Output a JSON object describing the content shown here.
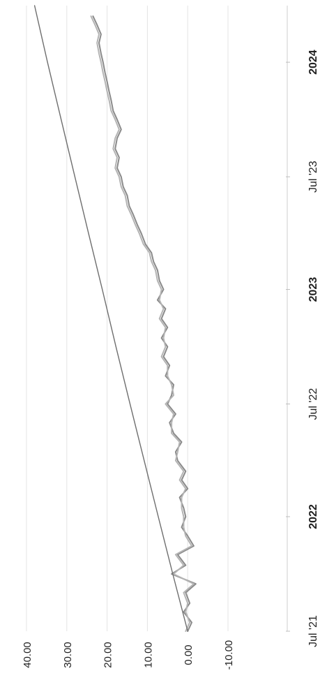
{
  "chart_data": {
    "type": "line",
    "title": "",
    "xlabel": "",
    "ylabel": "",
    "x_ticks": [
      {
        "label": "Jul '21",
        "date": "2021-07-01",
        "bold": false
      },
      {
        "label": "2022",
        "date": "2022-01-01",
        "bold": true
      },
      {
        "label": "Jul '22",
        "date": "2022-07-01",
        "bold": false
      },
      {
        "label": "2023",
        "date": "2023-01-01",
        "bold": true
      },
      {
        "label": "Jul '23",
        "date": "2023-07-01",
        "bold": false
      },
      {
        "label": "2024",
        "date": "2024-01-01",
        "bold": true
      }
    ],
    "y_ticks": [
      "-10.00",
      "0.00",
      "10.00",
      "20.00",
      "30.00",
      "40.00"
    ],
    "xlim": [
      "2021-07-01",
      "2024-04-01"
    ],
    "ylim": [
      -10,
      40
    ],
    "grid": true,
    "legend": "none",
    "orientation": "rotated-90-ccw",
    "series": [
      {
        "color": "#8a8a8a",
        "x": [
          "2021-07-01",
          "2021-07-15",
          "2021-08-01",
          "2021-08-15",
          "2021-09-01",
          "2021-09-15",
          "2021-10-01",
          "2021-10-15",
          "2021-11-01",
          "2021-11-15",
          "2021-12-01",
          "2021-12-15",
          "2022-01-01",
          "2022-01-15",
          "2022-02-01",
          "2022-02-15",
          "2022-03-01",
          "2022-03-15",
          "2022-04-01",
          "2022-04-15",
          "2022-05-01",
          "2022-05-15",
          "2022-06-01",
          "2022-06-15",
          "2022-07-01",
          "2022-07-15",
          "2022-08-01",
          "2022-08-15",
          "2022-09-01",
          "2022-09-15",
          "2022-10-01",
          "2022-10-15",
          "2022-11-01",
          "2022-11-15",
          "2022-12-01",
          "2022-12-15",
          "2023-01-01",
          "2023-01-15",
          "2023-02-01",
          "2023-02-15",
          "2023-03-01",
          "2023-03-15",
          "2023-04-01",
          "2023-04-15",
          "2023-05-01",
          "2023-05-15",
          "2023-06-01",
          "2023-06-15",
          "2023-07-01",
          "2023-07-15",
          "2023-08-01",
          "2023-08-15",
          "2023-09-01",
          "2023-09-15",
          "2023-10-01",
          "2023-10-15",
          "2023-11-01",
          "2023-11-15",
          "2023-12-01",
          "2023-12-15",
          "2024-01-01",
          "2024-01-15",
          "2024-02-01",
          "2024-02-15",
          "2024-03-01",
          "2024-03-15"
        ],
        "values": [
          0.0,
          -1.0,
          1.0,
          -0.5,
          0.5,
          -2.0,
          4.0,
          0.5,
          2.5,
          -1.5,
          0.0,
          1.5,
          0.5,
          1.0,
          2.0,
          0.0,
          1.5,
          0.5,
          2.5,
          3.0,
          1.5,
          3.5,
          4.5,
          3.0,
          5.0,
          4.0,
          3.5,
          5.5,
          4.5,
          6.0,
          5.0,
          6.5,
          5.0,
          6.5,
          5.5,
          7.5,
          6.0,
          7.0,
          7.5,
          8.5,
          9.0,
          10.5,
          11.5,
          12.5,
          13.5,
          14.5,
          15.0,
          16.0,
          16.5,
          17.5,
          17.0,
          18.0,
          17.5,
          16.5,
          17.5,
          18.5,
          19.0,
          19.5,
          20.0,
          20.5,
          21.0,
          21.5,
          22.0,
          21.5,
          22.5,
          23.5
        ]
      },
      {
        "color": "#b4b4b4",
        "x": [
          "2021-07-01",
          "2021-07-15",
          "2021-08-01",
          "2021-08-15",
          "2021-09-01",
          "2021-09-15",
          "2021-10-01",
          "2021-10-15",
          "2021-11-01",
          "2021-11-15",
          "2021-12-01",
          "2021-12-15",
          "2022-01-01",
          "2022-01-15",
          "2022-02-01",
          "2022-02-15",
          "2022-03-01",
          "2022-03-15",
          "2022-04-01",
          "2022-04-15",
          "2022-05-01",
          "2022-05-15",
          "2022-06-01",
          "2022-06-15",
          "2022-07-01",
          "2022-07-15",
          "2022-08-01",
          "2022-08-15",
          "2022-09-01",
          "2022-09-15",
          "2022-10-01",
          "2022-10-15",
          "2022-11-01",
          "2022-11-15",
          "2022-12-01",
          "2022-12-15",
          "2023-01-01",
          "2023-01-15",
          "2023-02-01",
          "2023-02-15",
          "2023-03-01",
          "2023-03-15",
          "2023-04-01",
          "2023-04-15",
          "2023-05-01",
          "2023-05-15",
          "2023-06-01",
          "2023-06-15",
          "2023-07-01",
          "2023-07-15",
          "2023-08-01",
          "2023-08-15",
          "2023-09-01",
          "2023-09-15",
          "2023-10-01",
          "2023-10-15",
          "2023-11-01",
          "2023-11-15",
          "2023-12-01",
          "2023-12-15",
          "2024-01-01",
          "2024-01-15",
          "2024-02-01",
          "2024-02-15",
          "2024-03-01",
          "2024-03-15"
        ],
        "values": [
          0.5,
          -0.5,
          0.5,
          0.0,
          1.0,
          -1.5,
          3.5,
          1.0,
          3.0,
          -1.0,
          0.5,
          1.0,
          1.0,
          1.5,
          1.5,
          0.5,
          2.0,
          1.0,
          3.0,
          2.5,
          2.0,
          4.0,
          4.0,
          3.5,
          5.5,
          3.5,
          4.0,
          5.0,
          5.0,
          6.5,
          5.5,
          6.0,
          5.5,
          7.0,
          6.0,
          7.0,
          6.5,
          7.5,
          8.0,
          9.0,
          9.5,
          11.0,
          12.0,
          13.0,
          14.0,
          15.0,
          15.5,
          16.5,
          17.0,
          18.0,
          17.5,
          18.5,
          18.0,
          17.0,
          18.0,
          19.0,
          19.5,
          20.0,
          20.5,
          21.0,
          21.5,
          22.0,
          22.5,
          22.0,
          23.0,
          24.0
        ]
      },
      {
        "color": "#6e6e6e",
        "x": [
          "2021-07-01",
          "2021-10-01",
          "2022-01-01",
          "2022-04-01",
          "2022-07-01",
          "2022-10-01",
          "2023-01-01",
          "2023-04-01",
          "2023-07-01",
          "2023-10-01",
          "2024-01-01",
          "2024-04-01"
        ],
        "values": [
          0.0,
          3.7,
          7.3,
          10.8,
          14.3,
          17.8,
          21.2,
          24.6,
          28.0,
          31.4,
          34.8,
          38.0
        ]
      }
    ]
  }
}
